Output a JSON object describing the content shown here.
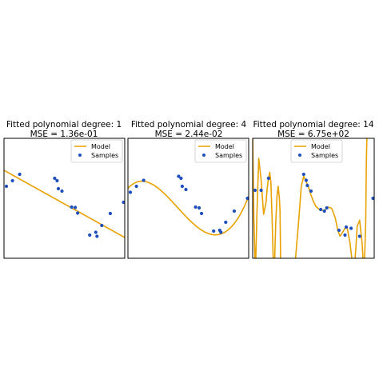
{
  "chart_data": [
    {
      "type": "line",
      "title": "Fitted polynomial degree: 1",
      "subtitle": "MSE = 1.36e-01",
      "degree": 1,
      "xlim": [
        0,
        1
      ],
      "ylim": [
        -1.5,
        1.5
      ],
      "axes_visible": false,
      "legend": {
        "placement": "top-right",
        "entries": [
          "Model",
          "Samples"
        ]
      },
      "series": [
        {
          "name": "Model",
          "kind": "line",
          "color": "#e8a100",
          "coef": [
            0.7,
            -1.68
          ]
        },
        {
          "name": "Samples",
          "kind": "scatter",
          "color": "#1f4fbf",
          "x": [
            0.02,
            0.07,
            0.13,
            0.42,
            0.44,
            0.45,
            0.48,
            0.56,
            0.59,
            0.61,
            0.71,
            0.76,
            0.77,
            0.81,
            0.88,
            0.99
          ],
          "y": [
            0.3,
            0.44,
            0.6,
            0.5,
            0.44,
            0.24,
            0.18,
            -0.22,
            -0.23,
            -0.37,
            -0.92,
            -0.85,
            -0.95,
            -0.68,
            -0.38,
            -0.1
          ]
        }
      ]
    },
    {
      "type": "line",
      "title": "Fitted polynomial degree: 4",
      "subtitle": "MSE = 2.44e-02",
      "degree": 4,
      "xlim": [
        0,
        1
      ],
      "ylim": [
        -1.5,
        1.5
      ],
      "axes_visible": false,
      "legend": {
        "placement": "top-right",
        "entries": [
          "Model",
          "Samples"
        ]
      },
      "series": [
        {
          "name": "Model",
          "kind": "curve",
          "color": "#e8a100",
          "coef": [
            0.25,
            3.25,
            -16.6,
            15.0,
            -1.85
          ]
        },
        {
          "name": "Samples",
          "kind": "scatter",
          "color": "#1f4fbf",
          "x": [
            0.02,
            0.07,
            0.13,
            0.42,
            0.44,
            0.45,
            0.48,
            0.56,
            0.59,
            0.61,
            0.71,
            0.76,
            0.77,
            0.81,
            0.88,
            0.99
          ],
          "y": [
            0.15,
            0.3,
            0.45,
            0.55,
            0.5,
            0.3,
            0.22,
            -0.22,
            -0.24,
            -0.38,
            -0.82,
            -0.8,
            -0.85,
            -0.6,
            -0.32,
            0.0
          ]
        }
      ]
    },
    {
      "type": "line",
      "title": "Fitted polynomial degree: 14",
      "subtitle": "MSE = 6.75e+02",
      "degree": 14,
      "xlim": [
        0,
        1
      ],
      "ylim": [
        -1.5,
        1.5
      ],
      "axes_visible": false,
      "legend": {
        "placement": "top-right",
        "entries": [
          "Model",
          "Samples"
        ]
      },
      "series": [
        {
          "name": "Model",
          "kind": "curve",
          "color": "#e8a100",
          "x": [
            0,
            0.01,
            0.02,
            0.025,
            0.035,
            0.05,
            0.07,
            0.09,
            0.11,
            0.12,
            0.13,
            0.14,
            0.15,
            0.16,
            0.17,
            0.18,
            0.19,
            0.2,
            0.21,
            0.22,
            0.225,
            0.23,
            0.25,
            0.3,
            0.35,
            0.38,
            0.4,
            0.42,
            0.44,
            0.46,
            0.48,
            0.5,
            0.52,
            0.54,
            0.56,
            0.59,
            0.62,
            0.65,
            0.68,
            0.7,
            0.72,
            0.74,
            0.76,
            0.77,
            0.78,
            0.8,
            0.82,
            0.83,
            0.84,
            0.85,
            0.86,
            0.88,
            0.9,
            0.91,
            0.915,
            0.92,
            0.93,
            0.935,
            0.94,
            0.95,
            0.96,
            0.97,
            1.0
          ],
          "y": [
            1.6,
            -0.5,
            -1.6,
            -1.6,
            -0.4,
            1.0,
            0.45,
            -0.4,
            -0.1,
            0.25,
            0.5,
            0.65,
            0.4,
            -0.5,
            -1.6,
            -1.6,
            -0.6,
            0.05,
            0.3,
            0.0,
            -0.3,
            -1.6,
            -1.6,
            -1.6,
            -1.6,
            -0.5,
            0.3,
            0.55,
            0.42,
            0.28,
            0.08,
            -0.08,
            -0.2,
            -0.26,
            -0.3,
            -0.3,
            -0.22,
            -0.25,
            -0.5,
            -0.8,
            -0.95,
            -0.85,
            -0.75,
            -0.7,
            -0.78,
            -1.1,
            -1.6,
            -1.6,
            -1.6,
            -1.2,
            -0.7,
            -0.55,
            -1.1,
            -1.6,
            -1.6,
            -1.6,
            -0.6,
            0.8,
            1.6,
            1.6,
            1.6,
            1.6,
            1.6
          ]
        },
        {
          "name": "Samples",
          "kind": "scatter",
          "color": "#1f4fbf",
          "x": [
            0.02,
            0.07,
            0.13,
            0.42,
            0.44,
            0.45,
            0.48,
            0.56,
            0.59,
            0.61,
            0.71,
            0.76,
            0.77,
            0.81,
            0.88,
            0.99
          ],
          "y": [
            0.2,
            0.2,
            0.5,
            0.6,
            0.45,
            0.32,
            0.18,
            -0.28,
            -0.32,
            -0.24,
            -0.8,
            -0.92,
            -0.72,
            -0.75,
            -0.95,
            0.0
          ]
        }
      ]
    }
  ],
  "colors": {
    "model": "#e8a100",
    "samples": "#1f4fbf",
    "frame": "#000000"
  }
}
